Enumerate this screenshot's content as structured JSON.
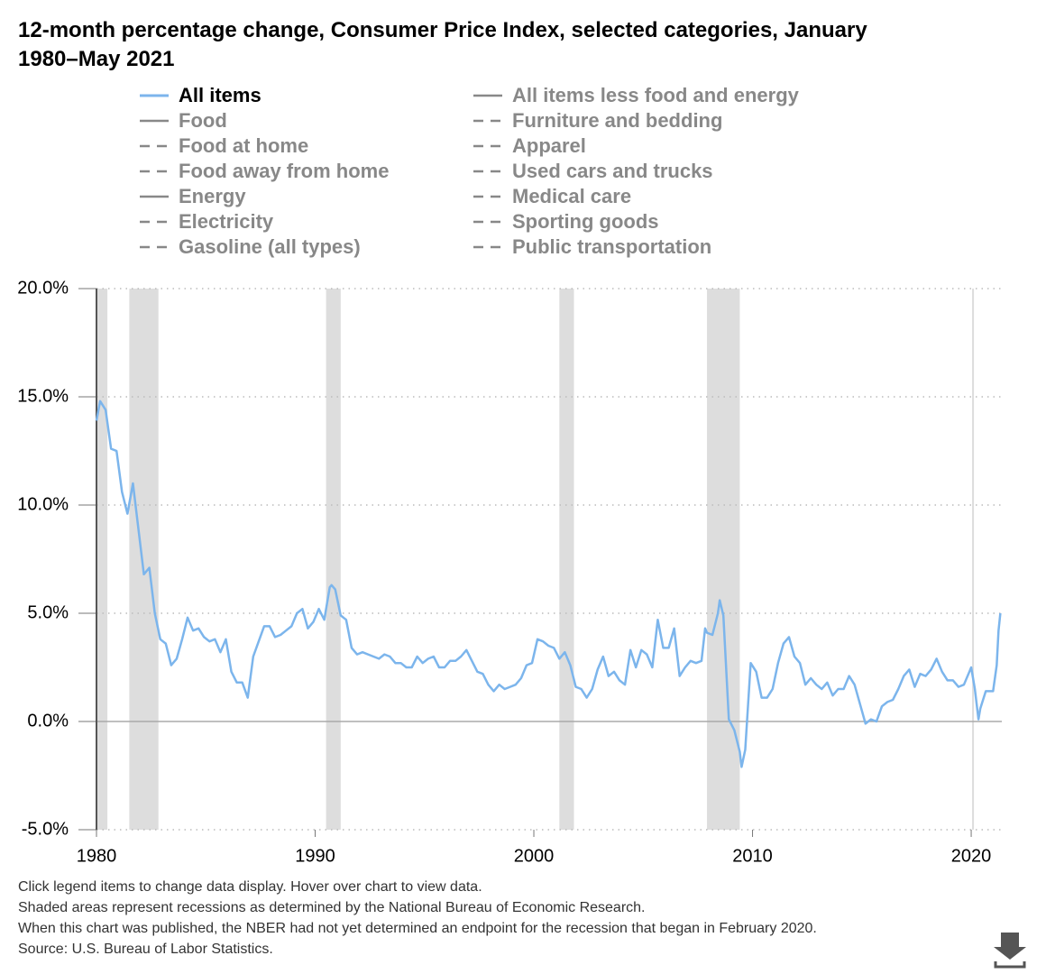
{
  "chart_data": {
    "type": "line",
    "title": "12-month percentage change, Consumer Price Index, selected categories, January 1980–May 2021",
    "series": [
      {
        "name": "All items",
        "color": "#7cb5ec",
        "visible": true,
        "x": [
          1980,
          1980.167,
          1980.417,
          1980.667,
          1980.917,
          1981.167,
          1981.417,
          1981.667,
          1981.917,
          1982.167,
          1982.417,
          1982.667,
          1982.917,
          1983.167,
          1983.417,
          1983.667,
          1983.917,
          1984.167,
          1984.417,
          1984.667,
          1984.917,
          1985.167,
          1985.417,
          1985.667,
          1985.917,
          1986.167,
          1986.417,
          1986.667,
          1986.917,
          1987.167,
          1987.417,
          1987.667,
          1987.917,
          1988.167,
          1988.417,
          1988.667,
          1988.917,
          1989.167,
          1989.417,
          1989.667,
          1989.917,
          1990.167,
          1990.417,
          1990.667,
          1990.75,
          1990.917,
          1991.167,
          1991.417,
          1991.667,
          1991.917,
          1992.167,
          1992.417,
          1992.667,
          1992.917,
          1993.167,
          1993.417,
          1993.667,
          1993.917,
          1994.167,
          1994.417,
          1994.667,
          1994.917,
          1995.167,
          1995.417,
          1995.667,
          1995.917,
          1996.167,
          1996.417,
          1996.667,
          1996.917,
          1997.167,
          1997.417,
          1997.667,
          1997.917,
          1998.167,
          1998.417,
          1998.667,
          1998.917,
          1999.167,
          1999.417,
          1999.667,
          1999.917,
          2000.167,
          2000.417,
          2000.667,
          2000.917,
          2001.167,
          2001.417,
          2001.667,
          2001.917,
          2002.167,
          2002.417,
          2002.667,
          2002.917,
          2003.167,
          2003.417,
          2003.667,
          2003.917,
          2004.167,
          2004.417,
          2004.667,
          2004.917,
          2005.167,
          2005.417,
          2005.667,
          2005.917,
          2006.167,
          2006.417,
          2006.667,
          2006.917,
          2007.167,
          2007.417,
          2007.667,
          2007.833,
          2007.917,
          2008.167,
          2008.417,
          2008.5,
          2008.667,
          2008.917,
          2009.167,
          2009.417,
          2009.5,
          2009.667,
          2009.917,
          2010.167,
          2010.417,
          2010.667,
          2010.917,
          2011.167,
          2011.417,
          2011.667,
          2011.917,
          2012.167,
          2012.417,
          2012.667,
          2012.917,
          2013.167,
          2013.417,
          2013.667,
          2013.917,
          2014.167,
          2014.417,
          2014.667,
          2014.917,
          2015.167,
          2015.417,
          2015.667,
          2015.917,
          2016.167,
          2016.417,
          2016.667,
          2016.917,
          2017.167,
          2017.417,
          2017.667,
          2017.917,
          2018.167,
          2018.417,
          2018.667,
          2018.917,
          2019.167,
          2019.417,
          2019.667,
          2019.917,
          2020,
          2020.167,
          2020.333,
          2020.417,
          2020.667,
          2020.917,
          2021,
          2021.167,
          2021.25,
          2021.333
        ],
        "values": [
          13.9,
          14.8,
          14.4,
          12.6,
          12.5,
          10.6,
          9.6,
          11.0,
          8.9,
          6.8,
          7.1,
          5.0,
          3.8,
          3.6,
          2.6,
          2.9,
          3.8,
          4.8,
          4.2,
          4.3,
          3.9,
          3.7,
          3.8,
          3.2,
          3.8,
          2.3,
          1.8,
          1.8,
          1.1,
          3.0,
          3.7,
          4.4,
          4.4,
          3.9,
          4.0,
          4.2,
          4.4,
          5.0,
          5.2,
          4.3,
          4.6,
          5.2,
          4.7,
          6.2,
          6.3,
          6.1,
          4.9,
          4.7,
          3.4,
          3.1,
          3.2,
          3.1,
          3.0,
          2.9,
          3.1,
          3.0,
          2.7,
          2.7,
          2.5,
          2.5,
          3.0,
          2.7,
          2.9,
          3.0,
          2.5,
          2.5,
          2.8,
          2.8,
          3.0,
          3.3,
          2.8,
          2.3,
          2.2,
          1.7,
          1.4,
          1.7,
          1.5,
          1.6,
          1.7,
          2.0,
          2.6,
          2.7,
          3.8,
          3.7,
          3.5,
          3.4,
          2.9,
          3.2,
          2.6,
          1.6,
          1.5,
          1.1,
          1.5,
          2.4,
          3.0,
          2.1,
          2.3,
          1.9,
          1.7,
          3.3,
          2.5,
          3.3,
          3.1,
          2.5,
          4.7,
          3.4,
          3.4,
          4.3,
          2.1,
          2.5,
          2.8,
          2.7,
          2.8,
          4.3,
          4.1,
          4.0,
          5.0,
          5.6,
          4.9,
          0.1,
          -0.4,
          -1.4,
          -2.1,
          -1.3,
          2.7,
          2.3,
          1.1,
          1.1,
          1.5,
          2.7,
          3.6,
          3.9,
          3.0,
          2.7,
          1.7,
          2.0,
          1.7,
          1.5,
          1.8,
          1.2,
          1.5,
          1.5,
          2.1,
          1.7,
          0.8,
          -0.1,
          0.1,
          0.0,
          0.7,
          0.9,
          1.0,
          1.5,
          2.1,
          2.4,
          1.6,
          2.2,
          2.1,
          2.4,
          2.9,
          2.3,
          1.9,
          1.9,
          1.6,
          1.7,
          2.3,
          2.5,
          1.5,
          0.1,
          0.6,
          1.4,
          1.4,
          1.4,
          2.6,
          4.2,
          5.0
        ]
      },
      {
        "name": "Food",
        "color": "#888888",
        "dash": false,
        "visible": false
      },
      {
        "name": "Food at home",
        "color": "#888888",
        "dash": true,
        "visible": false
      },
      {
        "name": "Food away from home",
        "color": "#888888",
        "dash": true,
        "visible": false
      },
      {
        "name": "Energy",
        "color": "#888888",
        "dash": false,
        "visible": false
      },
      {
        "name": "Electricity",
        "color": "#888888",
        "dash": true,
        "visible": false
      },
      {
        "name": "Gasoline (all types)",
        "color": "#888888",
        "dash": true,
        "visible": false
      },
      {
        "name": "All items less food and energy",
        "color": "#888888",
        "dash": false,
        "visible": false
      },
      {
        "name": "Furniture and bedding",
        "color": "#888888",
        "dash": true,
        "visible": false
      },
      {
        "name": "Apparel",
        "color": "#888888",
        "dash": true,
        "visible": false
      },
      {
        "name": "Used cars and trucks",
        "color": "#888888",
        "dash": true,
        "visible": false
      },
      {
        "name": "Medical care",
        "color": "#888888",
        "dash": true,
        "visible": false
      },
      {
        "name": "Sporting goods",
        "color": "#888888",
        "dash": true,
        "visible": false
      },
      {
        "name": "Public transportation",
        "color": "#888888",
        "dash": true,
        "visible": false
      }
    ],
    "recessions": [
      [
        1980.0,
        1980.5
      ],
      [
        1981.5,
        1982.833
      ],
      [
        1990.5,
        1991.167
      ],
      [
        2001.167,
        2001.833
      ],
      [
        2007.917,
        2009.417
      ],
      [
        2020.083,
        null
      ]
    ],
    "recession_color": "#dddddd",
    "xlim": [
      1980,
      2021.4
    ],
    "xticks": [
      1980,
      1990,
      2000,
      2010,
      2020
    ],
    "ylim": [
      -5,
      20
    ],
    "yticks": [
      {
        "value": -5,
        "label": "-5.0%"
      },
      {
        "value": 0,
        "label": "0.0%"
      },
      {
        "value": 5,
        "label": "5.0%"
      },
      {
        "value": 10,
        "label": "10.0%"
      },
      {
        "value": 15,
        "label": "15.0%"
      },
      {
        "value": 20,
        "label": "20.0%"
      }
    ],
    "grid": true,
    "notes": [
      "Click legend items to change data display. Hover over chart to view data.",
      "Shaded areas represent recessions as determined by the National Bureau of Economic Research.",
      "When this chart was published, the NBER had not yet determined an endpoint for the recession that began in February 2020.",
      "Source: U.S. Bureau of Labor Statistics."
    ]
  }
}
